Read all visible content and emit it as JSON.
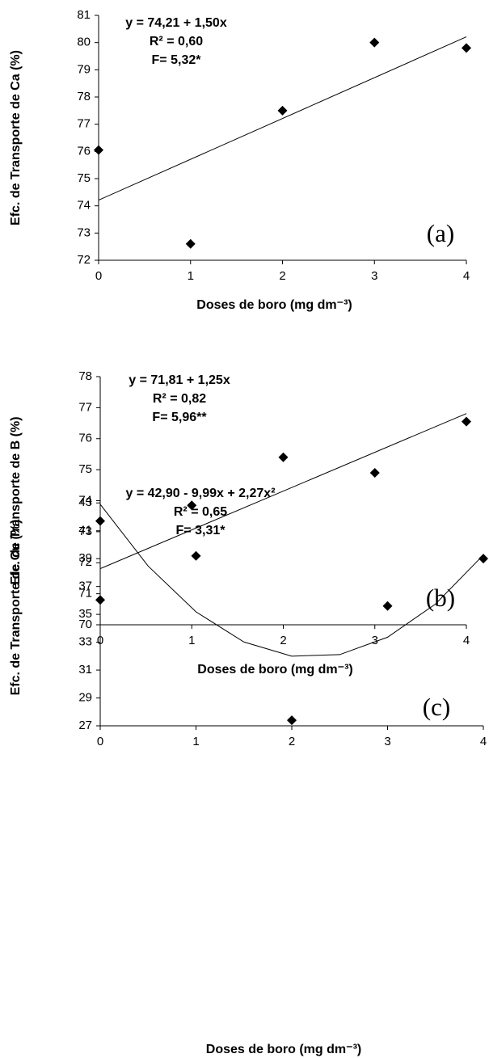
{
  "chart_data": [
    {
      "type": "scatter",
      "x": [
        0,
        1,
        2,
        3,
        4
      ],
      "values": [
        76.05,
        72.6,
        77.5,
        80.0,
        79.8
      ],
      "color": "#000000",
      "xlim": [
        0,
        4
      ],
      "xticks": [
        0,
        1,
        2,
        3,
        4
      ],
      "ylim": [
        72,
        81
      ],
      "yticks": [
        72,
        73,
        74,
        75,
        76,
        77,
        78,
        79,
        80,
        81
      ],
      "x_label": "Doses de boro (mg dm⁻³)",
      "y_label": "Efc. de Transporte de Ca  (%)",
      "annotations": [
        "y = 74,21 + 1,50x",
        "R² = 0,60",
        "F= 5,32*"
      ],
      "panel_label": "(a)",
      "fit": {
        "x": [
          0,
          4
        ],
        "values": [
          74.21,
          80.21
        ]
      }
    },
    {
      "type": "scatter",
      "x": [
        0,
        1,
        2,
        3,
        4
      ],
      "values": [
        70.8,
        73.85,
        75.4,
        74.9,
        76.55
      ],
      "color": "#000000",
      "xlim": [
        0,
        4
      ],
      "xticks": [
        0,
        1,
        2,
        3,
        4
      ],
      "ylim": [
        70,
        78
      ],
      "yticks": [
        70,
        71,
        72,
        73,
        74,
        75,
        76,
        77,
        78
      ],
      "x_label": "Doses de boro (mg dm⁻³)",
      "y_label": "Efc. de Transporte de B (%)",
      "annotations": [
        "y = 71,81 + 1,25x",
        "R² = 0,82",
        "F= 5,96**"
      ],
      "panel_label": "(b)",
      "fit": {
        "x": [
          0,
          4
        ],
        "values": [
          71.81,
          76.81
        ]
      }
    },
    {
      "type": "scatter",
      "x": [
        0,
        1,
        2,
        3,
        4
      ],
      "values": [
        41.7,
        39.2,
        27.4,
        35.6,
        39.0
      ],
      "color": "#000000",
      "xlim": [
        0,
        4
      ],
      "xticks": [
        0,
        1,
        2,
        3,
        4
      ],
      "ylim": [
        27,
        44
      ],
      "yticks": [
        27,
        29,
        31,
        33,
        35,
        37,
        39,
        41,
        43
      ],
      "x_label": "Doses de boro (mg dm⁻³)",
      "y_label": "Efc. de Transporte de Cu (%)",
      "annotations": [
        "y = 42,90 - 9,99x + 2,27x²",
        "R² = 0,65",
        "F= 3,31*"
      ],
      "panel_label": "(c)",
      "fit": {
        "x": [
          0,
          0.5,
          1,
          1.5,
          2,
          2.5,
          3,
          3.5,
          4
        ],
        "values": [
          42.9,
          38.47,
          35.18,
          33.02,
          32.0,
          32.11,
          33.36,
          35.74,
          39.26
        ]
      }
    }
  ]
}
